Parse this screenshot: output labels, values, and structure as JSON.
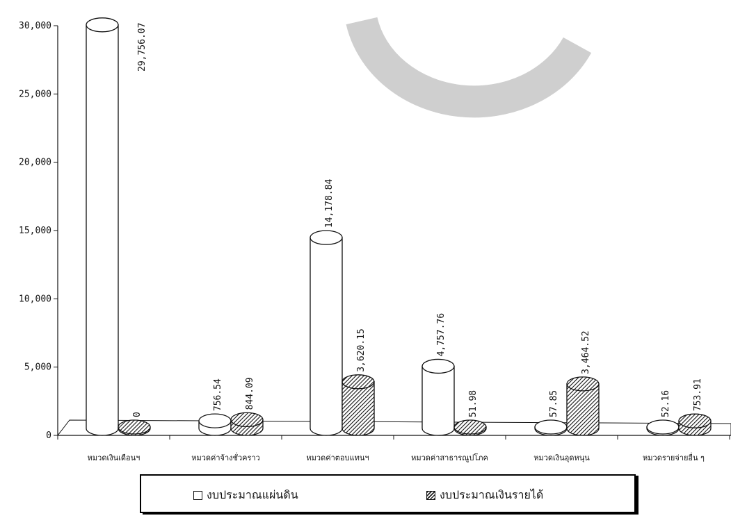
{
  "chart_data": {
    "type": "bar",
    "style": "3d-cylinder",
    "categories": [
      "หมวดเงินเดือนฯ",
      "หมวดค่าจ้างชั่วคราว",
      "หมวดค่าตอบแทนฯ",
      "หมวดค่าสาธารณูปโภค",
      "หมวดเงินอุดหนุน",
      "หมวดรายจ่ายอื่น ๆ"
    ],
    "series": [
      {
        "name": "งบประมาณแผ่นดิน",
        "fill": "#ffffff",
        "values": [
          29756.07,
          756.54,
          14178.84,
          4757.76,
          57.85,
          52.16
        ],
        "labels": [
          "29,756.07",
          "756.54",
          "14,178.84",
          "4,757.76",
          "57.85",
          "52.16"
        ]
      },
      {
        "name": "งบประมาณเงินรายได้",
        "fill": "hatched",
        "values": [
          0,
          844.09,
          3620.15,
          51.98,
          3464.52,
          753.91
        ],
        "labels": [
          "0",
          "844.09",
          "3,620.15",
          "51.98",
          "3,464.52",
          "753.91"
        ]
      }
    ],
    "yticks": [
      "0",
      "5,000",
      "10,000",
      "15,000",
      "20,000",
      "25,000",
      "30,000"
    ],
    "ytick_values": [
      0,
      5000,
      10000,
      15000,
      20000,
      25000,
      30000
    ],
    "ylim": [
      0,
      30000
    ],
    "grid": false,
    "legend_position": "bottom"
  },
  "legend": {
    "item1": "งบประมาณแผ่นดิน",
    "item2": "งบประมาณเงินรายได้"
  }
}
